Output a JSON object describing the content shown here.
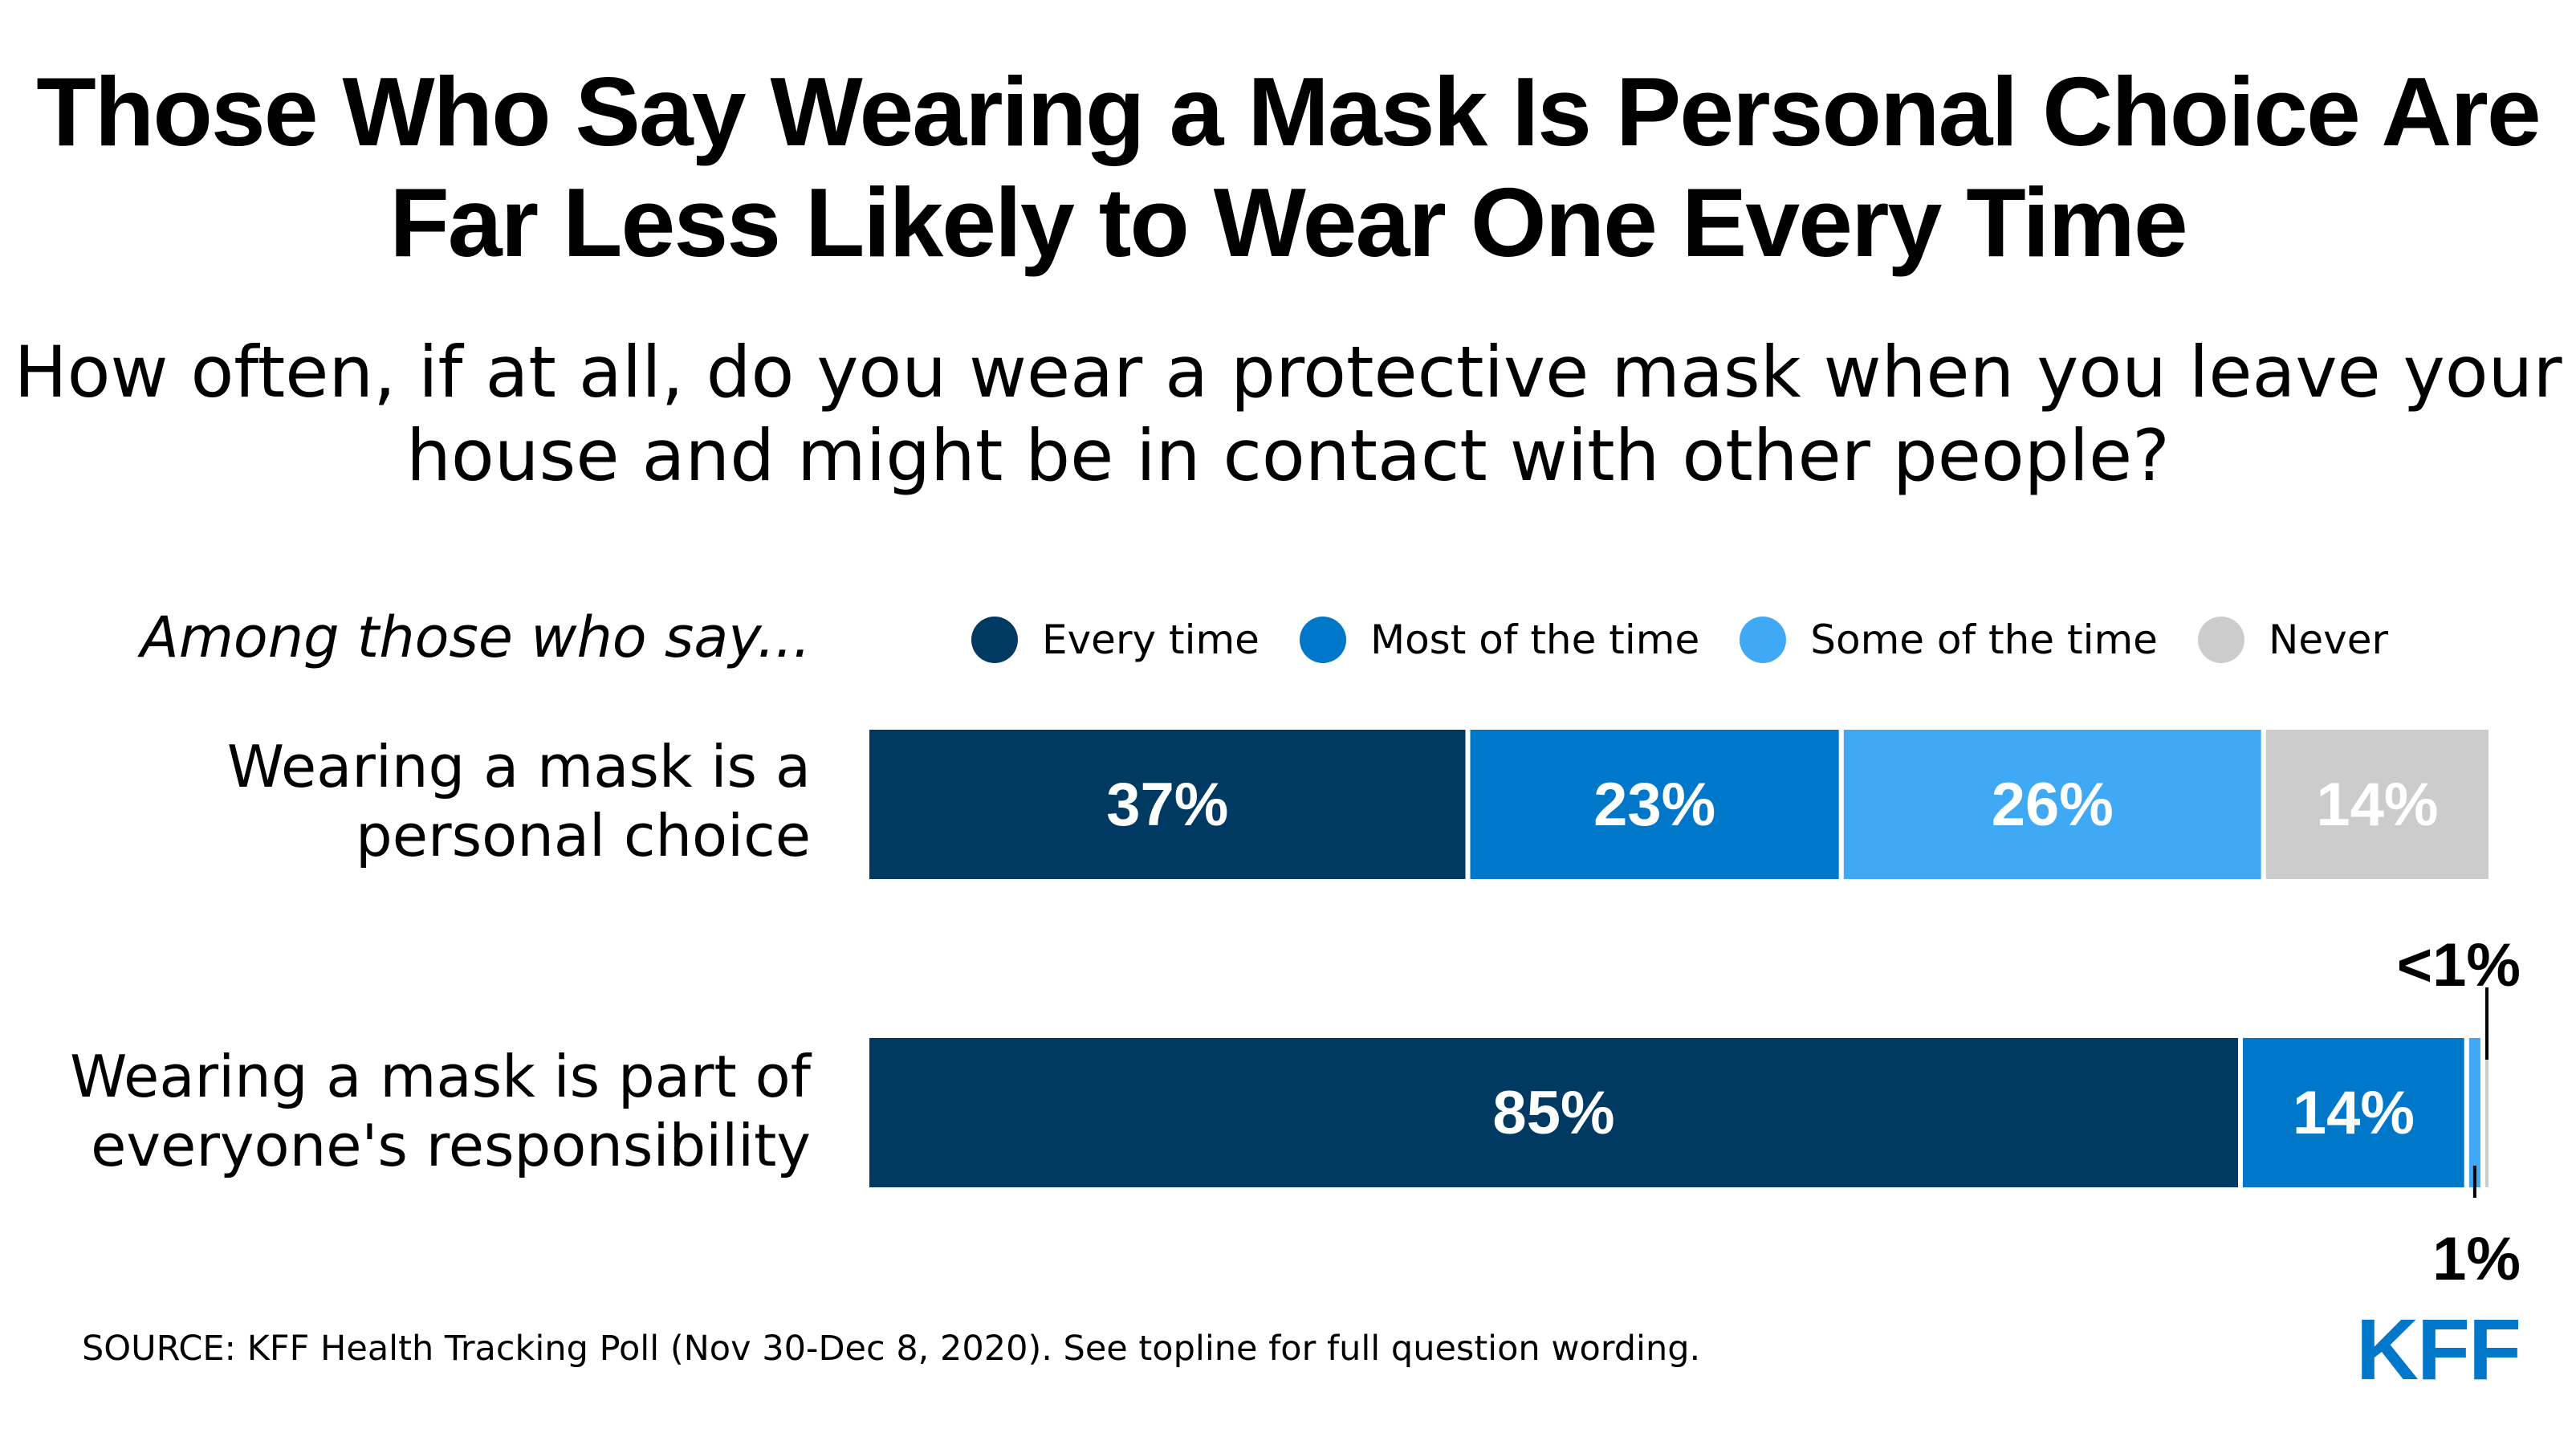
{
  "title_line1": "Those Who Say Wearing a Mask Is Personal Choice Are",
  "title_line2": "Far Less Likely to Wear One Every Time",
  "subtitle_line1": "How often, if at all, do you wear a protective mask when you leave your",
  "subtitle_line2": "house and might be in contact with other people?",
  "among_label": "Among those who say...",
  "source": "SOURCE: KFF Health Tracking Poll (Nov 30-Dec 8, 2020). See topline for full question wording.",
  "logo": "KFF",
  "chart_data": {
    "type": "bar",
    "orientation": "horizontal",
    "stacked": true,
    "xlim": [
      0,
      100
    ],
    "legend_placement": "top",
    "categories": [
      [
        "Wearing a mask is a",
        "personal choice"
      ],
      [
        "Wearing a mask is part of",
        "everyone's responsibility"
      ]
    ],
    "series": [
      {
        "name": "Every time",
        "color": "#003a63",
        "values": [
          37,
          85
        ],
        "labels": [
          "37%",
          "85%"
        ]
      },
      {
        "name": "Most of the time",
        "color": "#0077c8",
        "values": [
          23,
          14
        ],
        "labels": [
          "23%",
          "14%"
        ]
      },
      {
        "name": "Some of the time",
        "color": "#40a9f5",
        "values": [
          26,
          1
        ],
        "labels": [
          "26%",
          "1%"
        ]
      },
      {
        "name": "Never",
        "color": "#cccccc",
        "values": [
          14,
          0.5
        ],
        "labels": [
          "14%",
          "<1%"
        ]
      }
    ]
  }
}
